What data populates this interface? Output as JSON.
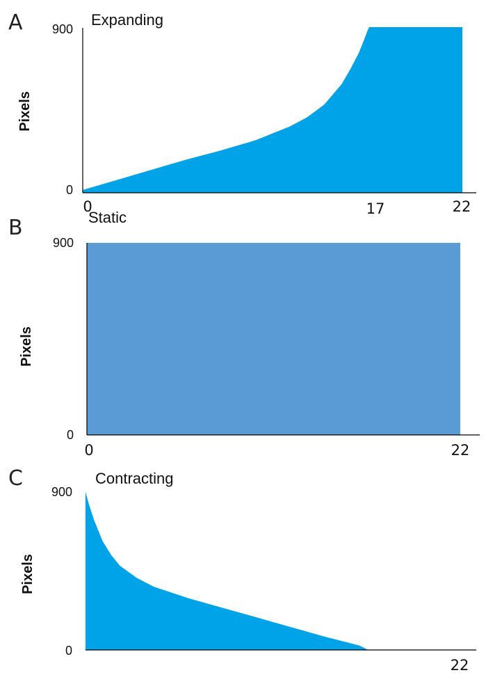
{
  "chart_data": [
    {
      "panel": "A",
      "type": "area",
      "title": "Expanding",
      "ylabel": "Pixels",
      "y_ticks": [
        "900",
        "0"
      ],
      "x_ticks": [
        "0",
        "17",
        "22"
      ],
      "xlim": [
        0,
        22
      ],
      "ylim": [
        0,
        900
      ],
      "color": "#00a2e8",
      "x": [
        0,
        2,
        4,
        6,
        8,
        10,
        12,
        13,
        14,
        15,
        15.5,
        16,
        16.3,
        16.5,
        16.6,
        22
      ],
      "y": [
        15,
        70,
        125,
        180,
        230,
        285,
        360,
        410,
        480,
        590,
        670,
        760,
        830,
        880,
        900,
        900
      ]
    },
    {
      "panel": "B",
      "type": "area",
      "title": "Static",
      "ylabel": "Pixels",
      "y_ticks": [
        "900",
        "0"
      ],
      "x_ticks": [
        "0",
        "22"
      ],
      "xlim": [
        0,
        22
      ],
      "ylim": [
        0,
        900
      ],
      "color": "#5b9bd5",
      "x": [
        0,
        22
      ],
      "y": [
        900,
        900
      ]
    },
    {
      "panel": "C",
      "type": "area",
      "title": "Contracting",
      "ylabel": "Pixels",
      "y_ticks": [
        "900",
        "0"
      ],
      "x_ticks": [
        "22"
      ],
      "xlim": [
        0,
        22
      ],
      "ylim": [
        0,
        900
      ],
      "color": "#00a2e8",
      "x": [
        0,
        0.2,
        0.5,
        1,
        1.5,
        2,
        3,
        4,
        6,
        8,
        10,
        12,
        14,
        16,
        16.5
      ],
      "y": [
        900,
        830,
        740,
        620,
        540,
        480,
        410,
        360,
        295,
        240,
        185,
        130,
        75,
        25,
        0
      ]
    }
  ]
}
